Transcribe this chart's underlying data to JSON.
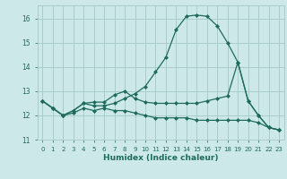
{
  "xlabel": "Humidex (Indice chaleur)",
  "background_color": "#cce8e8",
  "grid_color": "#aacccc",
  "line_color": "#1e6b5e",
  "xlim": [
    -0.5,
    23.5
  ],
  "ylim": [
    11.0,
    16.55
  ],
  "yticks": [
    11,
    12,
    13,
    14,
    15,
    16
  ],
  "xticks": [
    0,
    1,
    2,
    3,
    4,
    5,
    6,
    7,
    8,
    9,
    10,
    11,
    12,
    13,
    14,
    15,
    16,
    17,
    18,
    19,
    20,
    21,
    22,
    23
  ],
  "series1_x": [
    0,
    1,
    2,
    3,
    4,
    5,
    6,
    7,
    8,
    9,
    10,
    11,
    12,
    13,
    14,
    15,
    16,
    17,
    18,
    19,
    20,
    21,
    22,
    23
  ],
  "series1_y": [
    12.6,
    12.3,
    12.0,
    12.2,
    12.5,
    12.4,
    12.4,
    12.5,
    12.7,
    12.9,
    13.2,
    13.8,
    14.4,
    15.55,
    16.1,
    16.15,
    16.1,
    15.7,
    15.0,
    14.2,
    12.6,
    12.0,
    11.5,
    11.4
  ],
  "series2_x": [
    0,
    1,
    2,
    3,
    4,
    5,
    6,
    7,
    8,
    9,
    10,
    11,
    12,
    13,
    14,
    15,
    16,
    17,
    18,
    19,
    20,
    21,
    22,
    23
  ],
  "series2_y": [
    12.6,
    12.3,
    12.0,
    12.2,
    12.5,
    12.55,
    12.55,
    12.85,
    13.0,
    12.7,
    12.55,
    12.5,
    12.5,
    12.5,
    12.5,
    12.5,
    12.6,
    12.7,
    12.8,
    14.2,
    12.6,
    12.0,
    11.5,
    11.4
  ],
  "series3_x": [
    0,
    1,
    2,
    3,
    4,
    5,
    6,
    7,
    8,
    9,
    10,
    11,
    12,
    13,
    14,
    15,
    16,
    17,
    18,
    19,
    20,
    21,
    22,
    23
  ],
  "series3_y": [
    12.6,
    12.3,
    12.0,
    12.1,
    12.3,
    12.2,
    12.3,
    12.2,
    12.2,
    12.1,
    12.0,
    11.9,
    11.9,
    11.9,
    11.9,
    11.8,
    11.8,
    11.8,
    11.8,
    11.8,
    11.8,
    11.7,
    11.5,
    11.4
  ]
}
